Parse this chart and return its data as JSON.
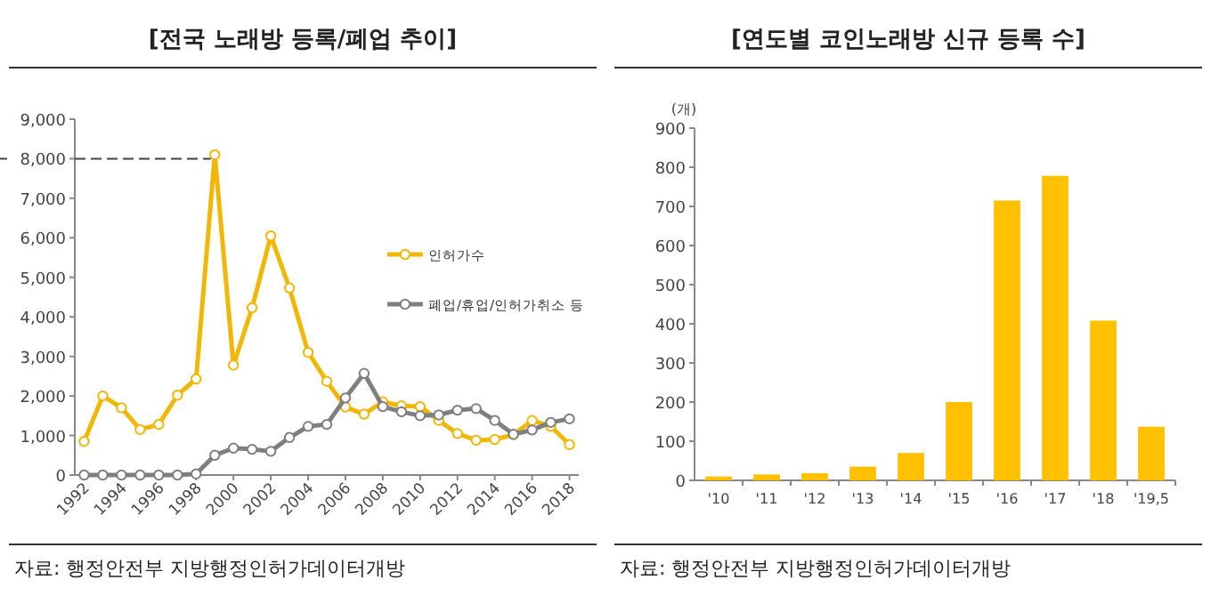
{
  "chart_data": [
    {
      "type": "line",
      "title": "[전국 노래방 등록/폐업 추이]",
      "x": [
        1992,
        1993,
        1994,
        1995,
        1996,
        1997,
        1998,
        1999,
        2000,
        2001,
        2002,
        2003,
        2004,
        2005,
        2006,
        2007,
        2008,
        2009,
        2010,
        2011,
        2012,
        2013,
        2014,
        2015,
        2016,
        2017,
        2018
      ],
      "xlim": [
        1991.5,
        2018.5
      ],
      "xticks": [
        1992,
        1994,
        1996,
        1998,
        2000,
        2002,
        2004,
        2006,
        2008,
        2010,
        2012,
        2014,
        2016,
        2018
      ],
      "ylim": [
        0,
        9000
      ],
      "yticks": [
        0,
        {
          "value": 1000,
          "label": "1,000"
        },
        {
          "value": 2000,
          "label": "2,000"
        },
        {
          "value": 3000,
          "label": "3,000"
        },
        {
          "value": 4000,
          "label": "4,000"
        },
        {
          "value": 5000,
          "label": "5,000"
        },
        {
          "value": 6000,
          "label": "6,000"
        },
        {
          "value": 7000,
          "label": "7,000"
        },
        {
          "value": 8000,
          "label": "8,000"
        },
        {
          "value": 9000,
          "label": "9,000"
        }
      ],
      "marker": "circle",
      "legend": "right",
      "grid": false,
      "series": [
        {
          "name": "인허가수",
          "color": "#f2b705",
          "values": [
            850,
            2000,
            1700,
            1150,
            1280,
            2020,
            2430,
            8100,
            2780,
            4230,
            6050,
            4730,
            3100,
            2370,
            1720,
            1540,
            1850,
            1750,
            1730,
            1380,
            1050,
            880,
            900,
            1020,
            1380,
            1230,
            770
          ]
        },
        {
          "name": "폐업/휴업/인허가취소 등",
          "color": "#7f7f7f",
          "values": [
            0,
            0,
            0,
            0,
            0,
            0,
            30,
            500,
            680,
            650,
            600,
            950,
            1230,
            1280,
            1950,
            2570,
            1730,
            1600,
            1500,
            1520,
            1640,
            1680,
            1380,
            1030,
            1140,
            1330,
            1420
          ]
        }
      ],
      "ref_lines": [
        {
          "axis": "y",
          "value": 8000,
          "color": "#404040",
          "line_style": "dashed"
        }
      ],
      "annotations": [
        "자료: 행정안전부 지방행정인허가데이터개방"
      ]
    },
    {
      "type": "bar",
      "title": "[연도별 코인노래방 신규 등록 수]",
      "ylabel": "(개)",
      "categories": [
        "'10",
        "'11",
        "'12",
        "'13",
        "'14",
        "'15",
        "'16",
        "'17",
        "'18",
        "'19,5"
      ],
      "values": [
        10,
        15,
        18,
        35,
        70,
        200,
        715,
        778,
        408,
        137
      ],
      "color": "#ffc000",
      "ylim": [
        0,
        900
      ],
      "yticks": [
        0,
        100,
        200,
        300,
        400,
        500,
        600,
        700,
        800,
        900
      ],
      "grid": false,
      "annotations": [
        "자료: 행정안전부 지방행정인허가데이터개방"
      ]
    }
  ]
}
